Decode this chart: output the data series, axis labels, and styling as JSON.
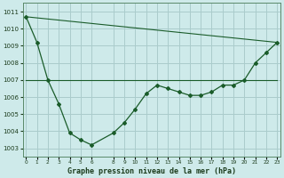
{
  "title": "Graphe pression niveau de la mer (hPa)",
  "bg_color": "#ceeaea",
  "grid_color": "#aacccc",
  "line_color": "#1a5c2a",
  "line1_x": [
    0,
    1,
    2,
    3,
    4,
    5,
    6,
    8,
    9,
    10,
    11,
    12,
    13,
    14,
    15,
    16,
    17,
    18,
    19,
    20,
    21,
    22,
    23
  ],
  "line1_y": [
    1010.7,
    1009.2,
    1007.0,
    1005.6,
    1003.9,
    1003.5,
    1003.2,
    1003.9,
    1004.5,
    1005.3,
    1006.2,
    1006.7,
    1006.5,
    1006.3,
    1006.1,
    1006.1,
    1006.3,
    1006.7,
    1006.7,
    1007.0,
    1008.0,
    1008.6,
    1009.2
  ],
  "line2_x": [
    0,
    23
  ],
  "line2_y": [
    1007.0,
    1007.0
  ],
  "line3_x": [
    0,
    23
  ],
  "line3_y": [
    1010.7,
    1009.2
  ],
  "ylim": [
    1002.5,
    1011.5
  ],
  "yticks": [
    1003,
    1004,
    1005,
    1006,
    1007,
    1008,
    1009,
    1010,
    1011
  ],
  "xticks": [
    0,
    1,
    2,
    3,
    4,
    5,
    6,
    8,
    9,
    10,
    11,
    12,
    13,
    14,
    15,
    16,
    17,
    18,
    19,
    20,
    21,
    22,
    23
  ],
  "xlim": [
    -0.3,
    23.3
  ],
  "title_fontsize": 6.0,
  "ytick_fontsize": 5.0,
  "xtick_fontsize": 4.2
}
